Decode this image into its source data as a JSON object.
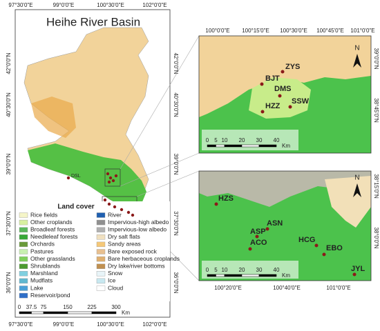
{
  "title": "Heihe River Basin",
  "main_map": {
    "top_labels": [
      "97°30'0\"E",
      "99°0'0\"E",
      "100°30'0\"E",
      "102°0'0\"E"
    ],
    "bottom_labels": [
      "97°30'0\"E",
      "99°0'0\"E",
      "100°30'0\"E",
      "102°0'0\"E"
    ],
    "left_labels": [
      "42°0'0\"N",
      "40°30'0\"N",
      "39°0'0\"N",
      "37°30'0\"N",
      "36°0'0\"N"
    ],
    "right_labels": [
      "42°0'0\"N",
      "40°30'0\"N",
      "39°0'0\"N",
      "37°30'0\"N",
      "36°0'0\"N"
    ],
    "sites": [
      "DSL"
    ],
    "scale_bar": {
      "ticks": [
        "0",
        "37.5",
        "75",
        "150",
        "225",
        "300"
      ],
      "unit": "Km"
    }
  },
  "legend": {
    "title": "Land cover",
    "items": [
      {
        "label": "Rice fields",
        "color": "#f5f5c8"
      },
      {
        "label": "Other croplands",
        "color": "#d8f0a0"
      },
      {
        "label": "Broadleaf forests",
        "color": "#5cb85c"
      },
      {
        "label": "Needleleaf forests",
        "color": "#38a838"
      },
      {
        "label": "Orchards",
        "color": "#6a9a3a"
      },
      {
        "label": "Pastures",
        "color": "#c8f0b0"
      },
      {
        "label": "Other grasslands",
        "color": "#7fd05a"
      },
      {
        "label": "Shrublands",
        "color": "#4c9a30"
      },
      {
        "label": "Marshland",
        "color": "#80d0e0"
      },
      {
        "label": "Mudflats",
        "color": "#60b8d0"
      },
      {
        "label": "Lake",
        "color": "#4aa0d8"
      },
      {
        "label": "Reservoir/pond",
        "color": "#2f6fc8"
      },
      {
        "label": "River",
        "color": "#1f5fb0"
      },
      {
        "label": "Impervious-high albedo",
        "color": "#909090"
      },
      {
        "label": "Impervious-low albedo",
        "color": "#b0b0b0"
      },
      {
        "label": "Dry salt flats",
        "color": "#f0e0c0"
      },
      {
        "label": "Sandy areas",
        "color": "#f5c878"
      },
      {
        "label": "Bare exposed rock",
        "color": "#e8c090"
      },
      {
        "label": "Bare herbaceous croplands",
        "color": "#e0b070"
      },
      {
        "label": "Dry lake/river bottoms",
        "color": "#c09050"
      },
      {
        "label": "Snow",
        "color": "#e8f4f8"
      },
      {
        "label": "Ice",
        "color": "#c8e8f0"
      },
      {
        "label": "Cloud",
        "color": "#ffffff"
      }
    ]
  },
  "insets": [
    {
      "top_labels": [
        "100°0'0\"E",
        "100°15'0\"E",
        "100°30'0\"E",
        "100°45'0\"E",
        "101°0'0\"E"
      ],
      "right_labels": [
        "39°0'0\"N",
        "38°45'0\"N"
      ],
      "sites": [
        "BJT",
        "ZYS",
        "DMS",
        "HZZ",
        "SSW"
      ],
      "north": "N",
      "scale_bar": {
        "ticks": [
          "0",
          "5",
          "10",
          "20",
          "30",
          "40"
        ],
        "unit": "Km"
      }
    },
    {
      "bottom_labels": [
        "100°20'0\"E",
        "100°40'0\"E",
        "101°0'0\"E"
      ],
      "right_labels": [
        "38°15'0\"N",
        "38°0'0\"N"
      ],
      "sites": [
        "HZS",
        "ASN",
        "ASP",
        "ACO",
        "HCG",
        "EBO",
        "JYL"
      ],
      "north": "N",
      "scale_bar": {
        "ticks": [
          "0",
          "5",
          "10",
          "20",
          "30",
          "40"
        ],
        "unit": "Km"
      }
    }
  ]
}
